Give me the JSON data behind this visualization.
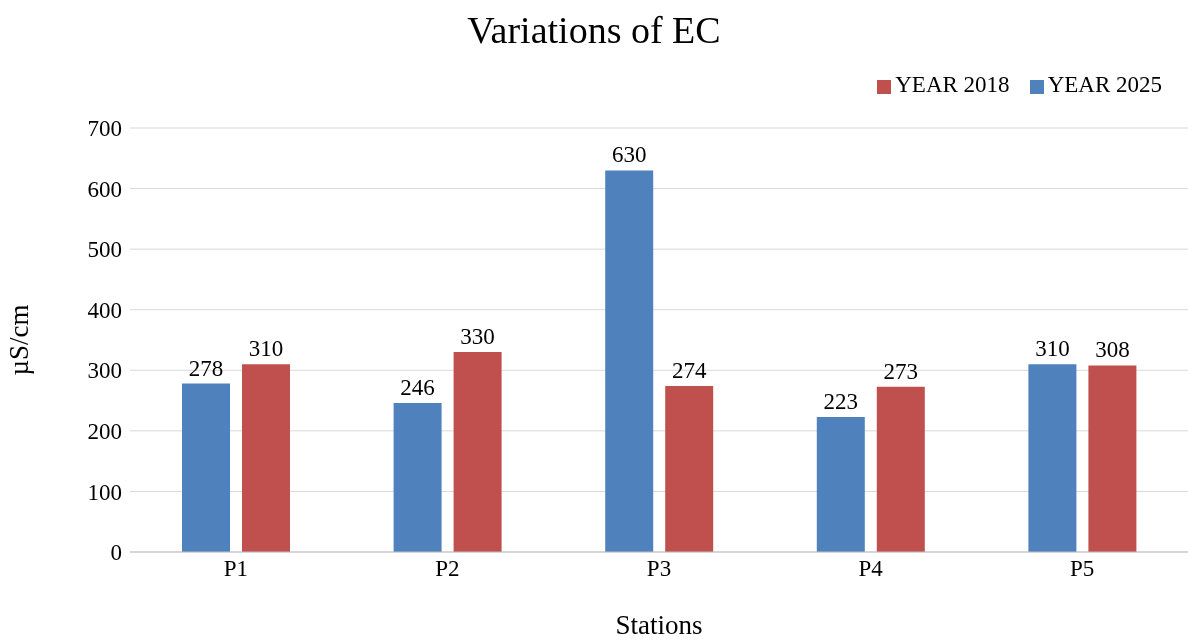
{
  "chart_data": {
    "type": "bar",
    "title": "Variations of EC",
    "xlabel": "Stations",
    "ylabel": "µS/cm",
    "categories": [
      "P1",
      "P2",
      "P3",
      "P4",
      "P5"
    ],
    "series": [
      {
        "name": "YEAR 2025",
        "color": "#4f81bd",
        "values": [
          278,
          246,
          630,
          223,
          310
        ]
      },
      {
        "name": "YEAR 2018",
        "color": "#c0504d",
        "values": [
          310,
          330,
          274,
          273,
          308
        ]
      }
    ],
    "ylim": [
      0,
      700
    ],
    "yticks": [
      0,
      100,
      200,
      300,
      400,
      500,
      600,
      700
    ],
    "grid": "y",
    "legend": "top right",
    "data_labels": true
  }
}
